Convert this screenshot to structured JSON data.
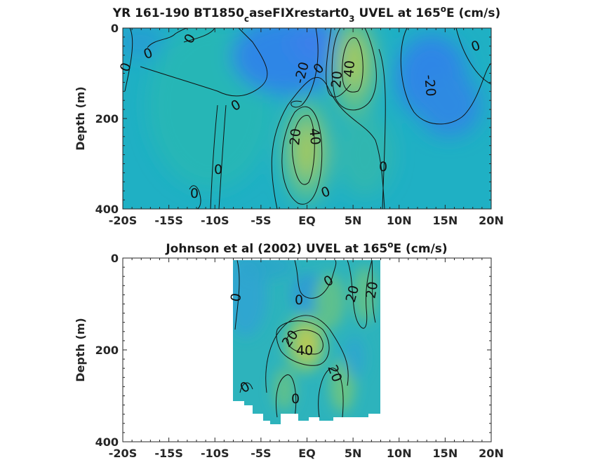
{
  "chart_data": [
    {
      "type": "heatmap",
      "title_main": "YR 161-190 BT1850",
      "title_sub1": "c",
      "title_mid": "aseFIXrestart0",
      "title_sub2": "3",
      "title_rest": " UVEL at 165",
      "title_sup": "o",
      "title_end": "E (cm/s)",
      "ylabel": "Depth (m)",
      "xlim": [
        -20,
        20
      ],
      "ylim": [
        0,
        400
      ],
      "y_reversed": true,
      "x_ticks": [
        -20,
        -15,
        -10,
        -5,
        0,
        5,
        10,
        15,
        20
      ],
      "x_tick_labels": [
        "-20S",
        "-15S",
        "-10S",
        "-5S",
        "EQ",
        "5N",
        "10N",
        "15N",
        "20N"
      ],
      "y_ticks": [
        0,
        200,
        400
      ],
      "y_tick_labels": [
        "0",
        "200",
        "400"
      ],
      "colormap": "parula",
      "color_range": [
        -60,
        60
      ],
      "data_extent": {
        "lat": [
          -20,
          20
        ],
        "depth": [
          0,
          395
        ]
      },
      "features": [
        {
          "kind": "max",
          "lat": 5.0,
          "depth": 80,
          "value": 45
        },
        {
          "kind": "max",
          "lat": 0.0,
          "depth": 230,
          "value": 45
        },
        {
          "kind": "min",
          "lat": 0.0,
          "depth": 50,
          "value": -25
        },
        {
          "kind": "min",
          "lat": 14.0,
          "depth": 110,
          "value": -25
        },
        {
          "kind": "min",
          "lat": -18.0,
          "depth": 60,
          "value": -10
        },
        {
          "kind": "min",
          "lat": -11.0,
          "depth": 60,
          "value": -10
        },
        {
          "kind": "max",
          "lat": -10.0,
          "depth": 320,
          "value": 8
        },
        {
          "kind": "min",
          "lat": -14.0,
          "depth": 280,
          "value": -4
        }
      ],
      "contour_labels": [
        "0",
        "0",
        "0",
        "-20",
        "0",
        "40",
        "20",
        "0",
        "-20",
        "0",
        "40",
        "20",
        "0",
        "0",
        "0",
        "0"
      ]
    },
    {
      "type": "heatmap",
      "title_main": "Johnson et al (2002) UVEL at 165",
      "title_sup": "o",
      "title_end": "E (cm/s)",
      "ylabel": "Depth (m)",
      "xlim": [
        -20,
        20
      ],
      "ylim": [
        0,
        400
      ],
      "y_reversed": true,
      "x_ticks": [
        -20,
        -15,
        -10,
        -5,
        0,
        5,
        10,
        15,
        20
      ],
      "x_tick_labels": [
        "-20S",
        "-15S",
        "-10S",
        "-5S",
        "EQ",
        "5N",
        "10N",
        "15N",
        "20N"
      ],
      "y_ticks": [
        0,
        200,
        400
      ],
      "y_tick_labels": [
        "0",
        "200",
        "400"
      ],
      "colormap": "parula",
      "color_range": [
        -60,
        60
      ],
      "data_extent": {
        "lat": [
          -8,
          8
        ],
        "depth": [
          0,
          365
        ]
      },
      "features": [
        {
          "kind": "max",
          "lat": 0.0,
          "depth": 190,
          "value": 45
        },
        {
          "kind": "max",
          "lat": 5.0,
          "depth": 100,
          "value": 25
        },
        {
          "kind": "max",
          "lat": 7.0,
          "depth": 100,
          "value": 22
        },
        {
          "kind": "max",
          "lat": 3.0,
          "depth": 300,
          "value": 22
        },
        {
          "kind": "max",
          "lat": -2.0,
          "depth": 300,
          "value": 20
        },
        {
          "kind": "min",
          "lat": -4.0,
          "depth": 110,
          "value": -10
        },
        {
          "kind": "min",
          "lat": 0.0,
          "depth": 30,
          "value": -8
        },
        {
          "kind": "min",
          "lat": 6.0,
          "depth": 250,
          "value": -5
        }
      ],
      "contour_labels": [
        "0",
        "0",
        "0",
        "20",
        "20",
        "20",
        "40",
        "20",
        "0",
        "0"
      ]
    }
  ]
}
